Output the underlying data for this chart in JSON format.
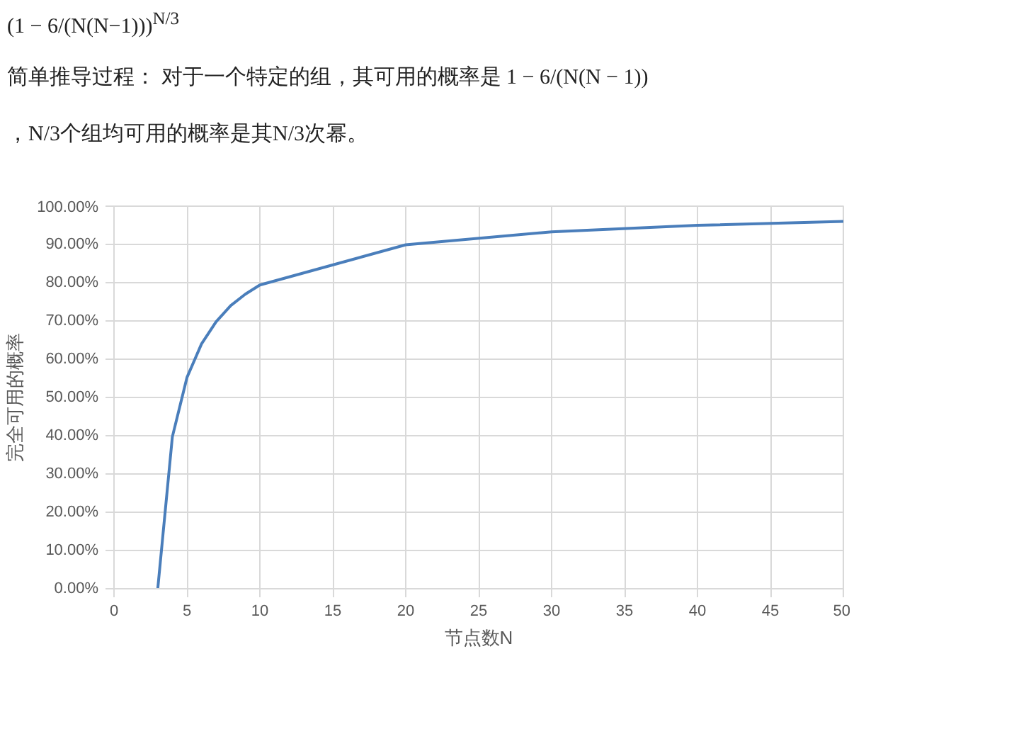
{
  "chart_data": {
    "type": "line",
    "annotations": [
      "(1 − 6/(N(N−1)))$^{N/3}$",
      "简单推导过程： 对于一个特定的组，其可用的概率是 1 − 6/(N(N − 1))",
      "，N/3个组均可用的概率是其N/3次幂。"
    ],
    "xlabel": "节点数N",
    "ylabel": "完全可用的概率",
    "x": [
      3,
      4,
      5,
      6,
      7,
      8,
      9,
      10,
      20,
      30,
      40,
      50
    ],
    "series": [
      {
        "color": "#4a7ebb",
        "values": [
          0,
          39.7,
          55.2,
          64.0,
          69.8,
          74.0,
          77.0,
          79.4,
          89.9,
          93.3,
          95.0,
          96.0
        ]
      }
    ],
    "xlim": [
      0,
      50
    ],
    "xticks": [
      0,
      5,
      10,
      15,
      20,
      25,
      30,
      35,
      40,
      45,
      50
    ],
    "ylim": [
      0,
      100
    ],
    "yticks": [
      {
        "value": 0,
        "label": "0.00%"
      },
      {
        "value": 10,
        "label": "10.00%"
      },
      {
        "value": 20,
        "label": "20.00%"
      },
      {
        "value": 30,
        "label": "30.00%"
      },
      {
        "value": 40,
        "label": "40.00%"
      },
      {
        "value": 50,
        "label": "50.00%"
      },
      {
        "value": 60,
        "label": "60.00%"
      },
      {
        "value": 70,
        "label": "70.00%"
      },
      {
        "value": 80,
        "label": "80.00%"
      },
      {
        "value": 90,
        "label": "90.00%"
      },
      {
        "value": 100,
        "label": "100.00%"
      }
    ],
    "grid": true,
    "marker": "none",
    "line_style": "solid"
  }
}
